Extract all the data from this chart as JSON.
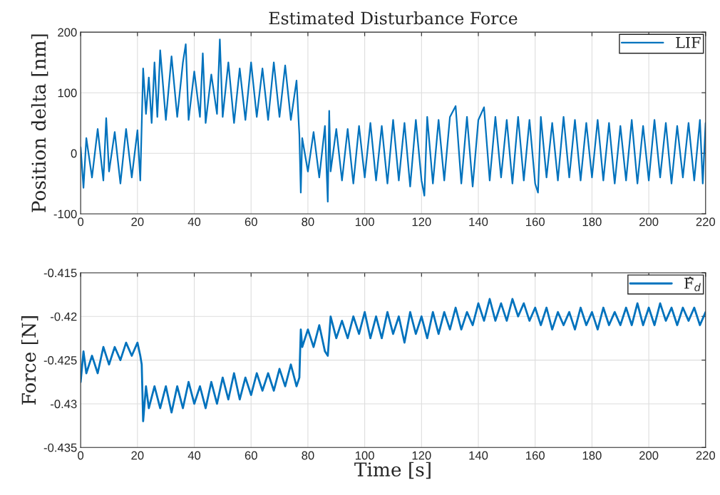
{
  "chart_data": [
    {
      "type": "line",
      "title": "Estimated Disturbance Force",
      "ylabel": "Position delta [nm]",
      "xlim": [
        0,
        220
      ],
      "xticks": [
        0,
        20,
        40,
        60,
        80,
        100,
        120,
        140,
        160,
        180,
        200,
        220
      ],
      "ylim": [
        -100,
        200
      ],
      "yticks": [
        -100,
        0,
        100,
        200
      ],
      "grid": true,
      "legend": "top right",
      "series": [
        {
          "name": "LIF",
          "color": "#0072bd",
          "x": [
            0,
            1,
            2,
            4,
            6,
            8,
            9,
            10,
            12,
            14,
            16,
            18,
            20,
            21,
            22,
            23,
            24,
            25,
            26,
            27,
            28,
            30,
            32,
            34,
            36,
            37,
            38,
            40,
            42,
            43,
            44,
            46,
            48,
            49,
            50,
            52,
            54,
            56,
            58,
            60,
            62,
            64,
            66,
            68,
            70,
            72,
            74,
            76,
            77,
            77.5,
            78,
            80,
            82,
            84,
            86,
            87,
            87.5,
            88,
            90,
            92,
            94,
            96,
            98,
            100,
            102,
            104,
            106,
            108,
            110,
            112,
            114,
            116,
            118,
            120,
            121,
            122,
            124,
            126,
            128,
            130,
            132,
            134,
            136,
            138,
            140,
            142,
            144,
            146,
            148,
            150,
            152,
            154,
            156,
            158,
            160,
            161,
            162,
            164,
            166,
            168,
            170,
            172,
            174,
            176,
            178,
            180,
            182,
            184,
            186,
            188,
            190,
            192,
            194,
            196,
            198,
            200,
            202,
            204,
            206,
            208,
            210,
            212,
            214,
            216,
            218,
            219,
            220
          ],
          "values": [
            10,
            -57,
            25,
            -40,
            40,
            -45,
            58,
            -30,
            35,
            -50,
            40,
            -40,
            38,
            -45,
            140,
            65,
            125,
            50,
            150,
            60,
            170,
            55,
            160,
            60,
            150,
            180,
            55,
            135,
            60,
            165,
            50,
            130,
            65,
            188,
            60,
            150,
            50,
            140,
            55,
            150,
            60,
            140,
            55,
            150,
            60,
            145,
            55,
            120,
            30,
            -65,
            25,
            -30,
            35,
            -40,
            45,
            -80,
            70,
            -30,
            40,
            -45,
            40,
            -50,
            45,
            -40,
            50,
            -45,
            45,
            -50,
            55,
            -45,
            50,
            -55,
            55,
            -45,
            -70,
            60,
            -50,
            55,
            -45,
            60,
            78,
            -50,
            60,
            -55,
            55,
            76,
            -45,
            60,
            -40,
            55,
            -50,
            60,
            -45,
            55,
            -50,
            -65,
            60,
            -40,
            50,
            -45,
            60,
            -40,
            55,
            -45,
            50,
            -40,
            55,
            -45,
            50,
            -50,
            45,
            -45,
            55,
            -50,
            45,
            -45,
            55,
            -40,
            50,
            -50,
            45,
            -40,
            50,
            -45,
            55,
            -50,
            50
          ]
        }
      ]
    },
    {
      "type": "line",
      "xlabel": "Time [s]",
      "ylabel": "Force [N]",
      "xlim": [
        0,
        220
      ],
      "xticks": [
        0,
        20,
        40,
        60,
        80,
        100,
        120,
        140,
        160,
        180,
        200,
        220
      ],
      "ylim": [
        -0.435,
        -0.415
      ],
      "yticks": [
        -0.435,
        -0.43,
        -0.425,
        -0.42,
        -0.415
      ],
      "grid": true,
      "legend": "top right",
      "series": [
        {
          "name": "F̂$_{d}$",
          "color": "#0072bd",
          "x": [
            0,
            1,
            2,
            4,
            6,
            8,
            10,
            12,
            14,
            16,
            18,
            20,
            21,
            21.5,
            22,
            23,
            24,
            26,
            28,
            30,
            32,
            34,
            36,
            38,
            40,
            42,
            44,
            46,
            48,
            50,
            52,
            54,
            56,
            58,
            60,
            62,
            64,
            66,
            68,
            70,
            72,
            74,
            76,
            77,
            77.5,
            78,
            80,
            82,
            84,
            86,
            87,
            88,
            90,
            92,
            94,
            96,
            98,
            100,
            102,
            104,
            106,
            108,
            110,
            112,
            114,
            116,
            118,
            120,
            122,
            124,
            126,
            128,
            130,
            132,
            134,
            136,
            138,
            140,
            142,
            144,
            146,
            148,
            150,
            152,
            154,
            156,
            158,
            160,
            162,
            164,
            166,
            168,
            170,
            172,
            174,
            176,
            178,
            180,
            182,
            184,
            186,
            188,
            190,
            192,
            194,
            196,
            198,
            200,
            202,
            204,
            206,
            208,
            210,
            212,
            214,
            216,
            218,
            220
          ],
          "values": [
            -0.4275,
            -0.424,
            -0.4265,
            -0.4245,
            -0.4265,
            -0.4235,
            -0.4255,
            -0.4235,
            -0.425,
            -0.423,
            -0.4245,
            -0.423,
            -0.4245,
            -0.4255,
            -0.432,
            -0.428,
            -0.4305,
            -0.428,
            -0.4305,
            -0.428,
            -0.431,
            -0.428,
            -0.4305,
            -0.4275,
            -0.43,
            -0.428,
            -0.4305,
            -0.4275,
            -0.43,
            -0.427,
            -0.4295,
            -0.4265,
            -0.4295,
            -0.427,
            -0.429,
            -0.4265,
            -0.4285,
            -0.4265,
            -0.4285,
            -0.426,
            -0.428,
            -0.4255,
            -0.428,
            -0.427,
            -0.4215,
            -0.4235,
            -0.4215,
            -0.4235,
            -0.421,
            -0.424,
            -0.4245,
            -0.42,
            -0.4225,
            -0.4205,
            -0.4225,
            -0.42,
            -0.422,
            -0.4195,
            -0.4225,
            -0.42,
            -0.4225,
            -0.4195,
            -0.422,
            -0.42,
            -0.423,
            -0.4195,
            -0.422,
            -0.42,
            -0.4225,
            -0.4195,
            -0.422,
            -0.4195,
            -0.4215,
            -0.419,
            -0.4215,
            -0.4195,
            -0.421,
            -0.4185,
            -0.4205,
            -0.418,
            -0.4205,
            -0.4185,
            -0.4205,
            -0.418,
            -0.42,
            -0.4185,
            -0.4205,
            -0.419,
            -0.421,
            -0.419,
            -0.4215,
            -0.4195,
            -0.421,
            -0.4195,
            -0.4215,
            -0.419,
            -0.421,
            -0.4195,
            -0.4215,
            -0.419,
            -0.421,
            -0.4195,
            -0.421,
            -0.419,
            -0.421,
            -0.4185,
            -0.421,
            -0.419,
            -0.421,
            -0.4185,
            -0.4205,
            -0.419,
            -0.421,
            -0.419,
            -0.4205,
            -0.419,
            -0.421,
            -0.4195
          ]
        }
      ]
    }
  ]
}
